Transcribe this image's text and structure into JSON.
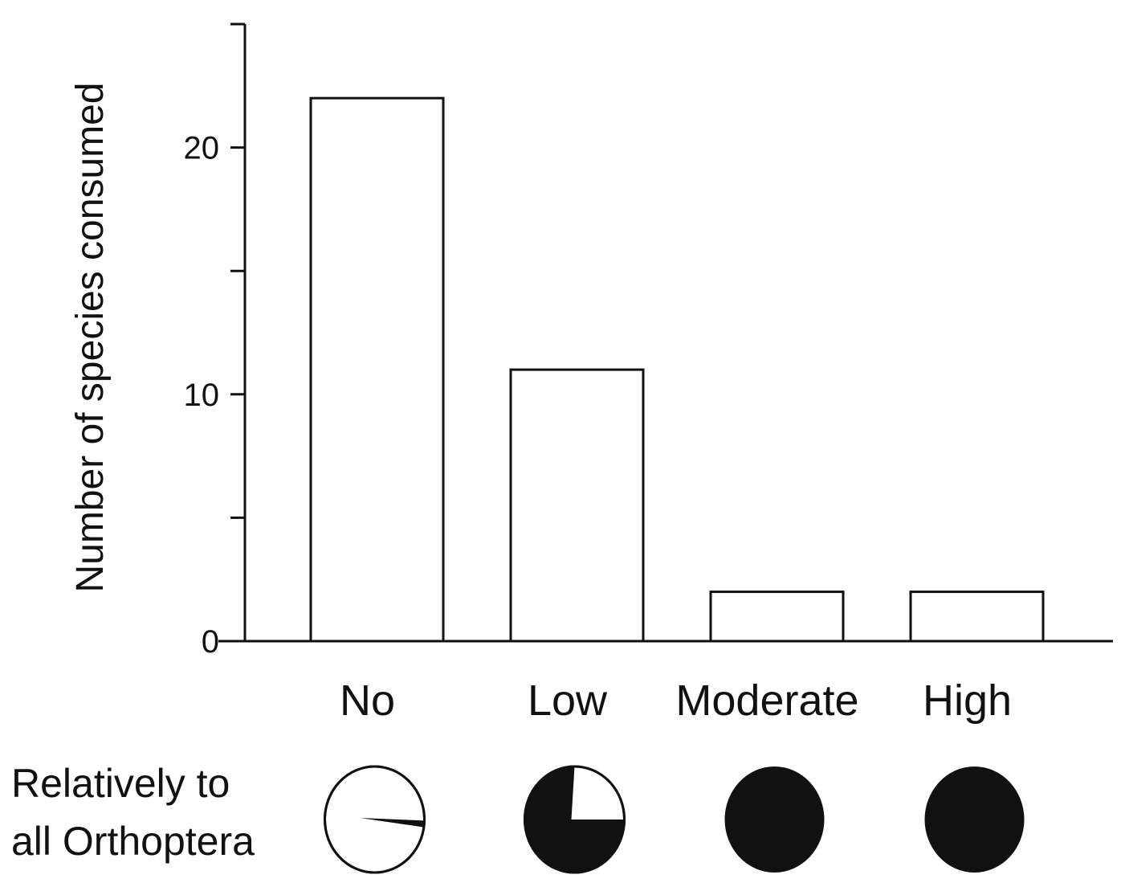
{
  "chart_data": {
    "type": "bar",
    "categories": [
      "No",
      "Low",
      "Moderate",
      "High"
    ],
    "values": [
      22,
      11,
      2,
      2
    ],
    "ylabel": "Number of species consumed",
    "xlabel": "",
    "ylim": [
      0,
      25
    ],
    "yticks": [
      0,
      5,
      10,
      15,
      20,
      25
    ],
    "ytick_labels": [
      "0",
      "",
      "10",
      "",
      "20",
      ""
    ],
    "grid": false,
    "bar_fill": "#ffffff",
    "bar_edge": "#111111",
    "relative_label": [
      "Relatively to",
      "all Orthoptera"
    ],
    "relative_share": [
      {
        "category": "No",
        "fraction": 0.02
      },
      {
        "category": "Low",
        "fraction": 0.75
      },
      {
        "category": "Moderate",
        "fraction": 1.0
      },
      {
        "category": "High",
        "fraction": 1.0
      }
    ]
  }
}
